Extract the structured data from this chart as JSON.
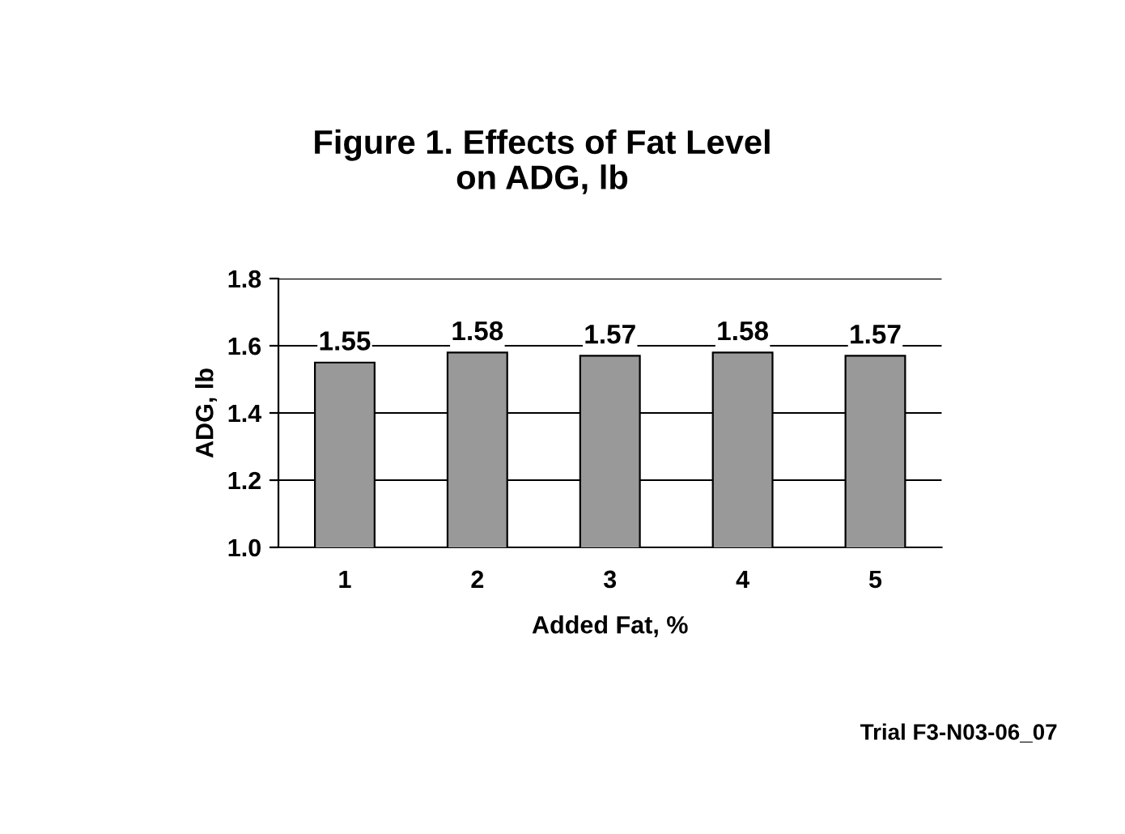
{
  "chart_data": {
    "type": "bar",
    "title": "Figure 1. Effects of Fat Level\non ADG, lb",
    "xlabel": "Added Fat, %",
    "ylabel": "ADG, lb",
    "categories": [
      "1",
      "2",
      "3",
      "4",
      "5"
    ],
    "values": [
      1.55,
      1.58,
      1.57,
      1.58,
      1.57
    ],
    "color": "#999999",
    "data_labels": true,
    "grid": "y",
    "ylim": [
      1.0,
      1.8
    ],
    "yticks": [
      {
        "value": 1.0,
        "label": "1.0"
      },
      {
        "value": 1.2,
        "label": "1.2"
      },
      {
        "value": 1.4,
        "label": "1.4"
      },
      {
        "value": 1.6,
        "label": "1.6"
      },
      {
        "value": 1.8,
        "label": "1.8"
      }
    ],
    "annotations": [
      "Trial F3-N03-06_07"
    ]
  }
}
